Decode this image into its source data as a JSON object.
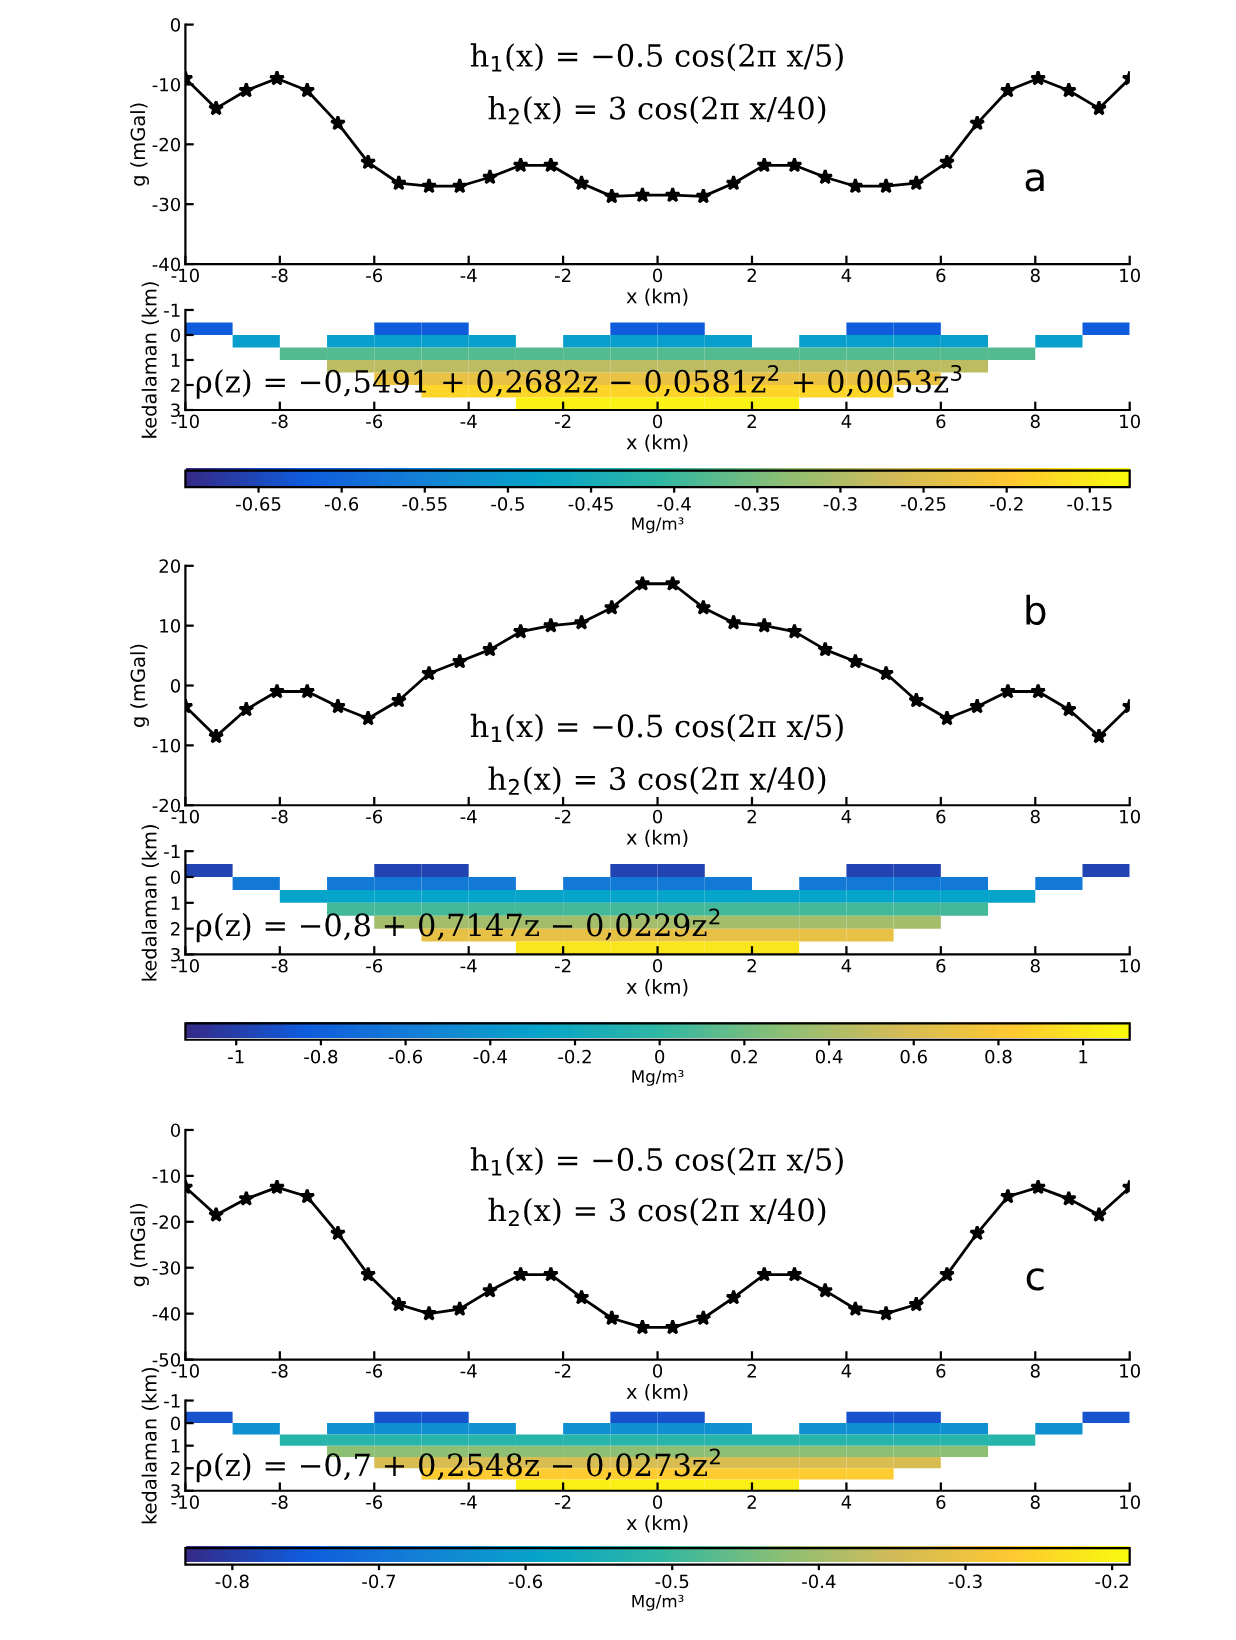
{
  "chart_data": [
    {
      "type": "line",
      "xlabel": "x (km)",
      "ylabel": "g (mGal)",
      "xlim": [
        -10,
        10
      ],
      "xticks": [
        -10,
        -8,
        -6,
        -4,
        -2,
        0,
        2,
        4,
        6,
        8,
        10
      ],
      "ylim": [
        -40,
        0
      ],
      "yticks": [
        -40,
        -30,
        -20,
        -10,
        0
      ],
      "marker": "star",
      "line_style": "solid",
      "grid": false,
      "x": [
        -10,
        -9.35,
        -8.71,
        -8.06,
        -7.42,
        -6.77,
        -6.13,
        -5.48,
        -4.84,
        -4.19,
        -3.55,
        -2.9,
        -2.26,
        -1.61,
        -0.97,
        -0.32,
        0.32,
        0.97,
        1.61,
        2.26,
        2.9,
        3.55,
        4.19,
        4.84,
        5.48,
        6.13,
        6.77,
        7.42,
        8.06,
        8.71,
        9.35,
        10
      ],
      "series": [
        {
          "color": "#000000",
          "values": [
            -9,
            -14,
            -11,
            -9,
            -11,
            -16.5,
            -23,
            -26.5,
            -27,
            -27,
            -25.5,
            -23.5,
            -23.5,
            -26.5,
            -28.7,
            -28.5,
            -28.5,
            -28.7,
            -26.5,
            -23.5,
            -23.5,
            -25.5,
            -27,
            -27,
            -26.5,
            -23,
            -16.5,
            -11,
            -9,
            -11,
            -14,
            -9
          ]
        }
      ],
      "annotations": [
        "h$_{1}$(x) = −0.5 cos(2π x/5)",
        "h$_{2}$(x) = 3 cos(2π x/40)",
        "a"
      ]
    },
    {
      "type": "heatmap",
      "xlabel": "x (km)",
      "ylabel": "kedalaman (km)",
      "clabel": "Mg/m³",
      "xlim": [
        -10,
        10
      ],
      "xticks": [
        -10,
        -8,
        -6,
        -4,
        -2,
        0,
        2,
        4,
        6,
        8,
        10
      ],
      "ylim": [
        3,
        -1
      ],
      "yticks": [
        -1,
        0,
        1,
        2,
        3
      ],
      "clim": [
        -0.694,
        -0.126
      ],
      "cticks": [
        -0.65,
        -0.6,
        -0.55,
        -0.5,
        -0.45,
        -0.4,
        -0.35,
        -0.3,
        -0.25,
        -0.2,
        -0.15
      ],
      "x": [
        -9.5,
        -8.5,
        -7.5,
        -6.5,
        -5.5,
        -4.5,
        -3.5,
        -2.5,
        -1.5,
        -0.5,
        0.5,
        1.5,
        2.5,
        3.5,
        4.5,
        5.5,
        6.5,
        7.5,
        8.5,
        9.5
      ],
      "y": [
        -0.25,
        0.25,
        0.75,
        1.25,
        1.75,
        2.25,
        2.75
      ],
      "cells": [
        [
          -0.62,
          null,
          null,
          null,
          -0.62,
          -0.62,
          null,
          null,
          null,
          -0.62,
          -0.62,
          null,
          null,
          null,
          -0.62,
          -0.62,
          null,
          null,
          null,
          -0.62
        ],
        [
          null,
          -0.49,
          null,
          -0.49,
          -0.49,
          -0.49,
          -0.49,
          null,
          -0.49,
          -0.49,
          -0.49,
          -0.49,
          null,
          -0.49,
          -0.49,
          -0.49,
          -0.49,
          null,
          -0.49,
          null
        ],
        [
          null,
          null,
          -0.38,
          -0.38,
          -0.38,
          -0.38,
          -0.38,
          -0.38,
          -0.38,
          -0.38,
          -0.38,
          -0.38,
          -0.38,
          -0.38,
          -0.38,
          -0.38,
          -0.38,
          -0.38,
          null,
          null
        ],
        [
          null,
          null,
          null,
          -0.29,
          -0.29,
          -0.29,
          -0.29,
          -0.29,
          -0.29,
          -0.29,
          -0.29,
          -0.29,
          -0.29,
          -0.29,
          -0.29,
          -0.29,
          -0.29,
          null,
          null,
          null
        ],
        [
          null,
          null,
          null,
          null,
          -0.23,
          -0.23,
          -0.23,
          -0.23,
          -0.23,
          -0.23,
          -0.23,
          -0.23,
          -0.23,
          -0.23,
          -0.23,
          -0.23,
          null,
          null,
          null,
          null
        ],
        [
          null,
          null,
          null,
          null,
          null,
          -0.18,
          -0.18,
          -0.18,
          -0.18,
          -0.18,
          -0.18,
          -0.18,
          -0.18,
          -0.18,
          -0.18,
          null,
          null,
          null,
          null,
          null
        ],
        [
          null,
          null,
          null,
          null,
          null,
          null,
          null,
          -0.14,
          -0.14,
          -0.14,
          -0.14,
          -0.14,
          -0.14,
          null,
          null,
          null,
          null,
          null,
          null,
          null
        ]
      ],
      "annotations": [
        "ρ(z) = −0,5491 + 0,2682z − 0,0581z$^{2}$ + 0,0053z$^{3}$"
      ]
    },
    {
      "type": "line",
      "xlabel": "x (km)",
      "ylabel": "g (mGal)",
      "xlim": [
        -10,
        10
      ],
      "xticks": [
        -10,
        -8,
        -6,
        -4,
        -2,
        0,
        2,
        4,
        6,
        8,
        10
      ],
      "ylim": [
        -20,
        20
      ],
      "yticks": [
        -20,
        -10,
        0,
        10,
        20
      ],
      "marker": "star",
      "line_style": "solid",
      "grid": false,
      "x": [
        -10,
        -9.35,
        -8.71,
        -8.06,
        -7.42,
        -6.77,
        -6.13,
        -5.48,
        -4.84,
        -4.19,
        -3.55,
        -2.9,
        -2.26,
        -1.61,
        -0.97,
        -0.32,
        0.32,
        0.97,
        1.61,
        2.26,
        2.9,
        3.55,
        4.19,
        4.84,
        5.48,
        6.13,
        6.77,
        7.42,
        8.06,
        8.71,
        9.35,
        10
      ],
      "series": [
        {
          "color": "#000000",
          "values": [
            -3.5,
            -8.5,
            -4,
            -1,
            -1,
            -3.5,
            -5.5,
            -2.5,
            2,
            4,
            6,
            9,
            10,
            10.5,
            13,
            17,
            17,
            13,
            10.5,
            10,
            9,
            6,
            4,
            2,
            -2.5,
            -5.5,
            -3.5,
            -1,
            -1,
            -4,
            -8.5,
            -3.5
          ]
        }
      ],
      "annotations": [
        "h$_{1}$(x) = −0.5 cos(2π x/5)",
        "h$_{2}$(x) = 3 cos(2π x/40)",
        "b"
      ]
    },
    {
      "type": "heatmap",
      "xlabel": "x (km)",
      "ylabel": "kedalaman (km)",
      "clabel": "Mg/m³",
      "xlim": [
        -10,
        10
      ],
      "xticks": [
        -10,
        -8,
        -6,
        -4,
        -2,
        0,
        2,
        4,
        6,
        8,
        10
      ],
      "ylim": [
        3,
        -1
      ],
      "yticks": [
        -1,
        0,
        1,
        2,
        3
      ],
      "clim": [
        -1.12,
        1.11
      ],
      "cticks": [
        -1,
        -0.8,
        -0.6,
        -0.4,
        -0.2,
        0,
        0.2,
        0.4,
        0.6,
        0.8,
        1
      ],
      "x": [
        -9.5,
        -8.5,
        -7.5,
        -6.5,
        -5.5,
        -4.5,
        -3.5,
        -2.5,
        -1.5,
        -0.5,
        0.5,
        1.5,
        2.5,
        3.5,
        4.5,
        5.5,
        6.5,
        7.5,
        8.5,
        9.5
      ],
      "y": [
        -0.25,
        0.25,
        0.75,
        1.25,
        1.75,
        2.25,
        2.75
      ],
      "cells": [
        [
          -0.98,
          null,
          null,
          null,
          -0.98,
          -0.98,
          null,
          null,
          null,
          -0.98,
          -0.98,
          null,
          null,
          null,
          -0.98,
          -0.98,
          null,
          null,
          null,
          -0.98
        ],
        [
          null,
          -0.62,
          null,
          -0.62,
          -0.62,
          -0.62,
          -0.62,
          null,
          -0.62,
          -0.62,
          -0.62,
          -0.62,
          null,
          -0.62,
          -0.62,
          -0.62,
          -0.62,
          null,
          -0.62,
          null
        ],
        [
          null,
          null,
          -0.28,
          -0.28,
          -0.28,
          -0.28,
          -0.28,
          -0.28,
          -0.28,
          -0.28,
          -0.28,
          -0.28,
          -0.28,
          -0.28,
          -0.28,
          -0.28,
          -0.28,
          -0.28,
          null,
          null
        ],
        [
          null,
          null,
          null,
          0.06,
          0.06,
          0.06,
          0.06,
          0.06,
          0.06,
          0.06,
          0.06,
          0.06,
          0.06,
          0.06,
          0.06,
          0.06,
          0.06,
          null,
          null,
          null
        ],
        [
          null,
          null,
          null,
          null,
          0.38,
          0.38,
          0.38,
          0.38,
          0.38,
          0.38,
          0.38,
          0.38,
          0.38,
          0.38,
          0.38,
          0.38,
          null,
          null,
          null,
          null
        ],
        [
          null,
          null,
          null,
          null,
          null,
          0.69,
          0.69,
          0.69,
          0.69,
          0.69,
          0.69,
          0.69,
          0.69,
          0.69,
          0.69,
          null,
          null,
          null,
          null,
          null
        ],
        [
          null,
          null,
          null,
          null,
          null,
          null,
          null,
          0.99,
          0.99,
          0.99,
          0.99,
          0.99,
          0.99,
          null,
          null,
          null,
          null,
          null,
          null,
          null
        ]
      ],
      "annotations": [
        "ρ(z) = −0,8 + 0,7147z − 0,0229z$^{2}$"
      ]
    },
    {
      "type": "line",
      "xlabel": "x (km)",
      "ylabel": "g (mGal)",
      "xlim": [
        -10,
        10
      ],
      "xticks": [
        -10,
        -8,
        -6,
        -4,
        -2,
        0,
        2,
        4,
        6,
        8,
        10
      ],
      "ylim": [
        -50,
        0
      ],
      "yticks": [
        -50,
        -40,
        -30,
        -20,
        -10,
        0
      ],
      "marker": "star",
      "line_style": "solid",
      "grid": false,
      "x": [
        -10,
        -9.35,
        -8.71,
        -8.06,
        -7.42,
        -6.77,
        -6.13,
        -5.48,
        -4.84,
        -4.19,
        -3.55,
        -2.9,
        -2.26,
        -1.61,
        -0.97,
        -0.32,
        0.32,
        0.97,
        1.61,
        2.26,
        2.9,
        3.55,
        4.19,
        4.84,
        5.48,
        6.13,
        6.77,
        7.42,
        8.06,
        8.71,
        9.35,
        10
      ],
      "series": [
        {
          "color": "#000000",
          "values": [
            -12.5,
            -18.5,
            -15,
            -12.5,
            -14.5,
            -22.5,
            -31.5,
            -38,
            -40,
            -39,
            -35,
            -31.5,
            -31.5,
            -36.5,
            -41,
            -43,
            -43,
            -41,
            -36.5,
            -31.5,
            -31.5,
            -35,
            -39,
            -40,
            -38,
            -31.5,
            -22.5,
            -14.5,
            -12.5,
            -15,
            -18.5,
            -12.5
          ]
        }
      ],
      "annotations": [
        "h$_{1}$(x) = −0.5 cos(2π x/5)",
        "h$_{2}$(x) = 3 cos(2π x/40)",
        "c"
      ]
    },
    {
      "type": "heatmap",
      "xlabel": "x (km)",
      "ylabel": "kedalaman (km)",
      "clabel": "Mg/m³",
      "xlim": [
        -10,
        10
      ],
      "xticks": [
        -10,
        -8,
        -6,
        -4,
        -2,
        0,
        2,
        4,
        6,
        8,
        10
      ],
      "ylim": [
        3,
        -1
      ],
      "yticks": [
        -1,
        0,
        1,
        2,
        3
      ],
      "clim": [
        -0.832,
        -0.188
      ],
      "cticks": [
        -0.8,
        -0.7,
        -0.6,
        -0.5,
        -0.4,
        -0.3,
        -0.2
      ],
      "x": [
        -9.5,
        -8.5,
        -7.5,
        -6.5,
        -5.5,
        -4.5,
        -3.5,
        -2.5,
        -1.5,
        -0.5,
        0.5,
        1.5,
        2.5,
        3.5,
        4.5,
        5.5,
        6.5,
        7.5,
        8.5,
        9.5
      ],
      "y": [
        -0.25,
        0.25,
        0.75,
        1.25,
        1.75,
        2.25,
        2.75
      ],
      "cells": [
        [
          -0.766,
          null,
          null,
          null,
          -0.766,
          -0.766,
          null,
          null,
          null,
          -0.766,
          -0.766,
          null,
          null,
          null,
          -0.766,
          -0.766,
          null,
          null,
          null,
          -0.766
        ],
        [
          null,
          -0.638,
          null,
          -0.638,
          -0.638,
          -0.638,
          -0.638,
          null,
          -0.638,
          -0.638,
          -0.638,
          -0.638,
          null,
          -0.638,
          -0.638,
          -0.638,
          -0.638,
          null,
          -0.638,
          null
        ],
        [
          null,
          null,
          -0.524,
          -0.524,
          -0.524,
          -0.524,
          -0.524,
          -0.524,
          -0.524,
          -0.524,
          -0.524,
          -0.524,
          -0.524,
          -0.524,
          -0.524,
          -0.524,
          -0.524,
          -0.524,
          null,
          null
        ],
        [
          null,
          null,
          null,
          -0.424,
          -0.424,
          -0.424,
          -0.424,
          -0.424,
          -0.424,
          -0.424,
          -0.424,
          -0.424,
          -0.424,
          -0.424,
          -0.424,
          -0.424,
          -0.424,
          null,
          null,
          null
        ],
        [
          null,
          null,
          null,
          null,
          -0.338,
          -0.338,
          -0.338,
          -0.338,
          -0.338,
          -0.338,
          -0.338,
          -0.338,
          -0.338,
          -0.338,
          -0.338,
          -0.338,
          null,
          null,
          null,
          null
        ],
        [
          null,
          null,
          null,
          null,
          null,
          -0.265,
          -0.265,
          -0.265,
          -0.265,
          -0.265,
          -0.265,
          -0.265,
          -0.265,
          -0.265,
          -0.265,
          null,
          null,
          null,
          null,
          null
        ],
        [
          null,
          null,
          null,
          null,
          null,
          null,
          null,
          -0.206,
          -0.206,
          -0.206,
          -0.206,
          -0.206,
          -0.206,
          null,
          null,
          null,
          null,
          null,
          null,
          null
        ]
      ],
      "annotations": [
        "ρ(z) = −0,7 + 0,2548z − 0,0273z$^{2}$"
      ]
    }
  ]
}
